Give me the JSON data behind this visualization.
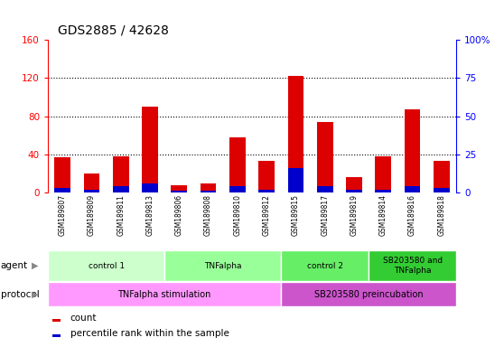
{
  "title": "GDS2885 / 42628",
  "samples": [
    "GSM189807",
    "GSM189809",
    "GSM189811",
    "GSM189813",
    "GSM189806",
    "GSM189808",
    "GSM189810",
    "GSM189812",
    "GSM189815",
    "GSM189817",
    "GSM189819",
    "GSM189814",
    "GSM189816",
    "GSM189818"
  ],
  "counts": [
    37,
    20,
    38,
    90,
    8,
    10,
    58,
    33,
    122,
    74,
    16,
    38,
    87,
    33
  ],
  "percentiles": [
    3,
    2,
    4,
    6,
    1,
    1,
    4,
    2,
    16,
    4,
    2,
    2,
    4,
    3
  ],
  "ylim_left": [
    0,
    160
  ],
  "ylim_right": [
    0,
    100
  ],
  "yticks_left": [
    0,
    40,
    80,
    120,
    160
  ],
  "yticks_right": [
    0,
    25,
    50,
    75,
    100
  ],
  "ytick_labels_right": [
    "0",
    "25",
    "50",
    "75",
    "100%"
  ],
  "bar_color_count": "#dd0000",
  "bar_color_pct": "#0000cc",
  "bar_width": 0.55,
  "agent_groups": [
    {
      "label": "control 1",
      "start": 0,
      "end": 3,
      "color": "#ccffcc"
    },
    {
      "label": "TNFalpha",
      "start": 4,
      "end": 7,
      "color": "#99ff99"
    },
    {
      "label": "control 2",
      "start": 8,
      "end": 10,
      "color": "#66ee66"
    },
    {
      "label": "SB203580 and\nTNFalpha",
      "start": 11,
      "end": 13,
      "color": "#33cc33"
    }
  ],
  "protocol_groups": [
    {
      "label": "TNFalpha stimulation",
      "start": 0,
      "end": 7,
      "color": "#ff99ff"
    },
    {
      "label": "SB203580 preincubation",
      "start": 8,
      "end": 13,
      "color": "#cc55cc"
    }
  ],
  "bg_color": "#ffffff",
  "tick_area_color": "#c8c8c8"
}
